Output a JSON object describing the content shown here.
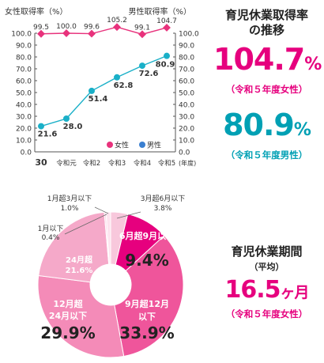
{
  "chart_data": [
    {
      "type": "line",
      "x": [
        "30",
        "令和元",
        "令和2",
        "令和3",
        "令和4",
        "令和5"
      ],
      "xlabel": "(年度)",
      "series": [
        {
          "name": "女性",
          "values": [
            99.5,
            100.0,
            99.6,
            105.2,
            99.1,
            104.7
          ],
          "color": "#e8327c",
          "axis": "left"
        },
        {
          "name": "男性",
          "values": [
            21.6,
            28.0,
            51.4,
            62.8,
            72.6,
            80.9
          ],
          "color": "#1ab0c8",
          "axis": "right"
        }
      ],
      "value_labels": {
        "女性": [
          "99.5",
          "100.0",
          "99.6",
          "105.2",
          "99.1",
          "104.7"
        ],
        "男性": [
          "21.6",
          "28.0",
          "51.4",
          "62.8",
          "72.6",
          "80.9"
        ]
      },
      "left_axis": {
        "label": "女性取得率（%）",
        "ylim": [
          0,
          100
        ],
        "ticks": [
          "0.0",
          "10.0",
          "20.0",
          "30.0",
          "40.0",
          "50.0",
          "60.0",
          "70.0",
          "80.0",
          "90.0",
          "100.0"
        ]
      },
      "right_axis": {
        "label": "男性取得率（%）",
        "ylim": [
          0,
          100
        ],
        "ticks": [
          "0.0",
          "10.0",
          "20.0",
          "30.0",
          "40.0",
          "50.0",
          "60.0",
          "70.0",
          "80.0",
          "90.0",
          "100.0"
        ]
      },
      "legend_position": "bottom-right",
      "grid": false
    },
    {
      "type": "pie",
      "donut": true,
      "slices": [
        {
          "label": "3月超6月以下",
          "value": 3.8,
          "value_text": "3.8%",
          "color": "#f8c8dc"
        },
        {
          "label": "6月超9月以下",
          "value": 9.4,
          "value_text": "9.4%",
          "color": "#e6007e"
        },
        {
          "label": "9月超12月以下",
          "value": 33.9,
          "value_text": "33.9%",
          "color": "#ef559b"
        },
        {
          "label": "12月超24月以下",
          "value": 29.9,
          "value_text": "29.9%",
          "color": "#f48bb8"
        },
        {
          "label": "24月超",
          "value": 21.6,
          "value_text": "21.6%",
          "color": "#f5a9c9"
        },
        {
          "label": "1月以下",
          "value": 0.4,
          "value_text": "0.4%",
          "color": "#fbd6e6"
        },
        {
          "label": "1月超3月以下",
          "value": 1.0,
          "value_text": "1.0%",
          "color": "#fde3ee"
        }
      ]
    }
  ],
  "panels": {
    "rate": {
      "title_line1": "育児休業取得率",
      "title_line2": "の推移",
      "female_value": "104.7",
      "female_unit": "%",
      "female_note": "（令和５年度女性）",
      "male_value": "80.9",
      "male_unit": "%",
      "male_note": "（令和５年度男性）"
    },
    "period": {
      "title": "育児休業期間",
      "subtitle": "（平均）",
      "value": "16.5",
      "unit": "ヶ月",
      "note": "（令和５年度女性）"
    }
  }
}
